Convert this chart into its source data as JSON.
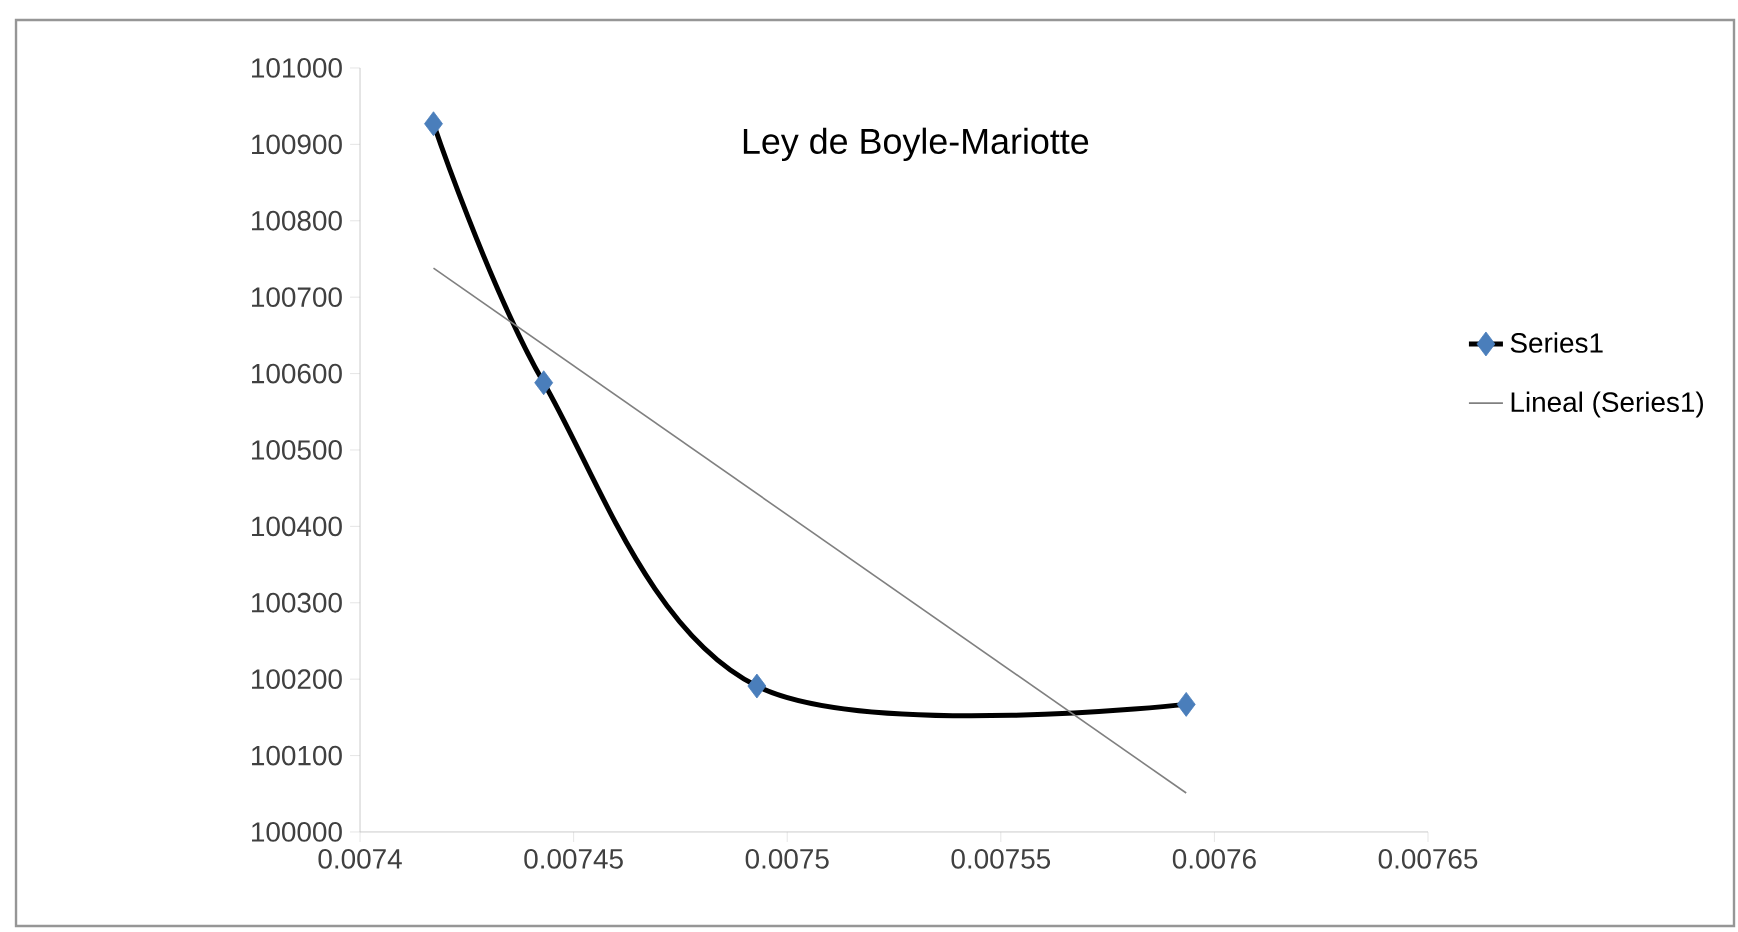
{
  "chart_data": {
    "type": "line",
    "title": "Ley de Boyle-Mariotte",
    "series": [
      {
        "name": "Series1",
        "color": "#000000",
        "colors": [
          "#4a7ebb",
          "#4a7ebb",
          "#4a7ebb",
          "#4a7ebb"
        ],
        "marker": "diamond",
        "x": [
          0.0074172,
          0.007443,
          0.0074929,
          0.0075934
        ],
        "values": [
          100927,
          100588,
          100191,
          100167
        ]
      },
      {
        "name": "Lineal (Series1)",
        "color": "#808080",
        "marker": "none",
        "x": [
          0.0074172,
          0.0075934
        ],
        "values": [
          100738,
          100051
        ]
      }
    ],
    "xlim": [
      0.0074,
      0.00765
    ],
    "xticks": [
      0.0074,
      0.00745,
      0.0075,
      0.00755,
      0.0076,
      0.00765
    ],
    "ylim": [
      100000,
      101000
    ],
    "yticks": [
      100000,
      100100,
      100200,
      100300,
      100400,
      100500,
      100600,
      100700,
      100800,
      100900,
      101000
    ],
    "grid": false,
    "legend": "right"
  }
}
